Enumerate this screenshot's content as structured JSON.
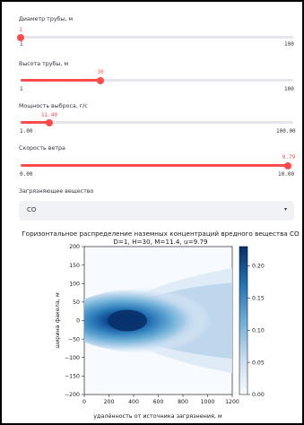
{
  "sliders": [
    {
      "label": "Диаметр трубы, м",
      "value": "1",
      "min": "1",
      "max": "100",
      "fraction": 0.0
    },
    {
      "label": "Высота трубы, м",
      "value": "30",
      "min": "1",
      "max": "100",
      "fraction": 0.293
    },
    {
      "label": "Мощность выброса, г/с",
      "value": "11.40",
      "min": "1.00",
      "max": "100.00",
      "fraction": 0.105
    },
    {
      "label": "Скорость ветра",
      "value": "9.79",
      "min": "0.00",
      "max": "10.00",
      "fraction": 0.979
    }
  ],
  "pollutant": {
    "label": "Загрязняющее вещество",
    "value": "CO"
  },
  "chart_data": {
    "type": "heatmap",
    "title": "Горизонтальное распределение наземных концентраций вредного вещества CO",
    "subtitle": "D=1, H=30, M=11.4, u=9.79",
    "xlabel": "удалённость от источника загрязнения, м",
    "ylabel": "ширина факела, м",
    "xlim": [
      0,
      1200
    ],
    "ylim": [
      -200,
      200
    ],
    "x_ticks": [
      "0",
      "200",
      "400",
      "600",
      "800",
      "1000",
      "1200"
    ],
    "y_ticks": [
      "200",
      "150",
      "100",
      "50",
      "0",
      "−50",
      "−100",
      "−150",
      "−200"
    ],
    "colorbar_ticks": [
      "0.20",
      "0.15",
      "0.10",
      "0.05",
      "0.00"
    ],
    "colorbar_range": [
      0,
      0.23
    ],
    "peak": {
      "x": 300,
      "y": 0,
      "value": 0.23
    },
    "colormap": "Blues"
  }
}
